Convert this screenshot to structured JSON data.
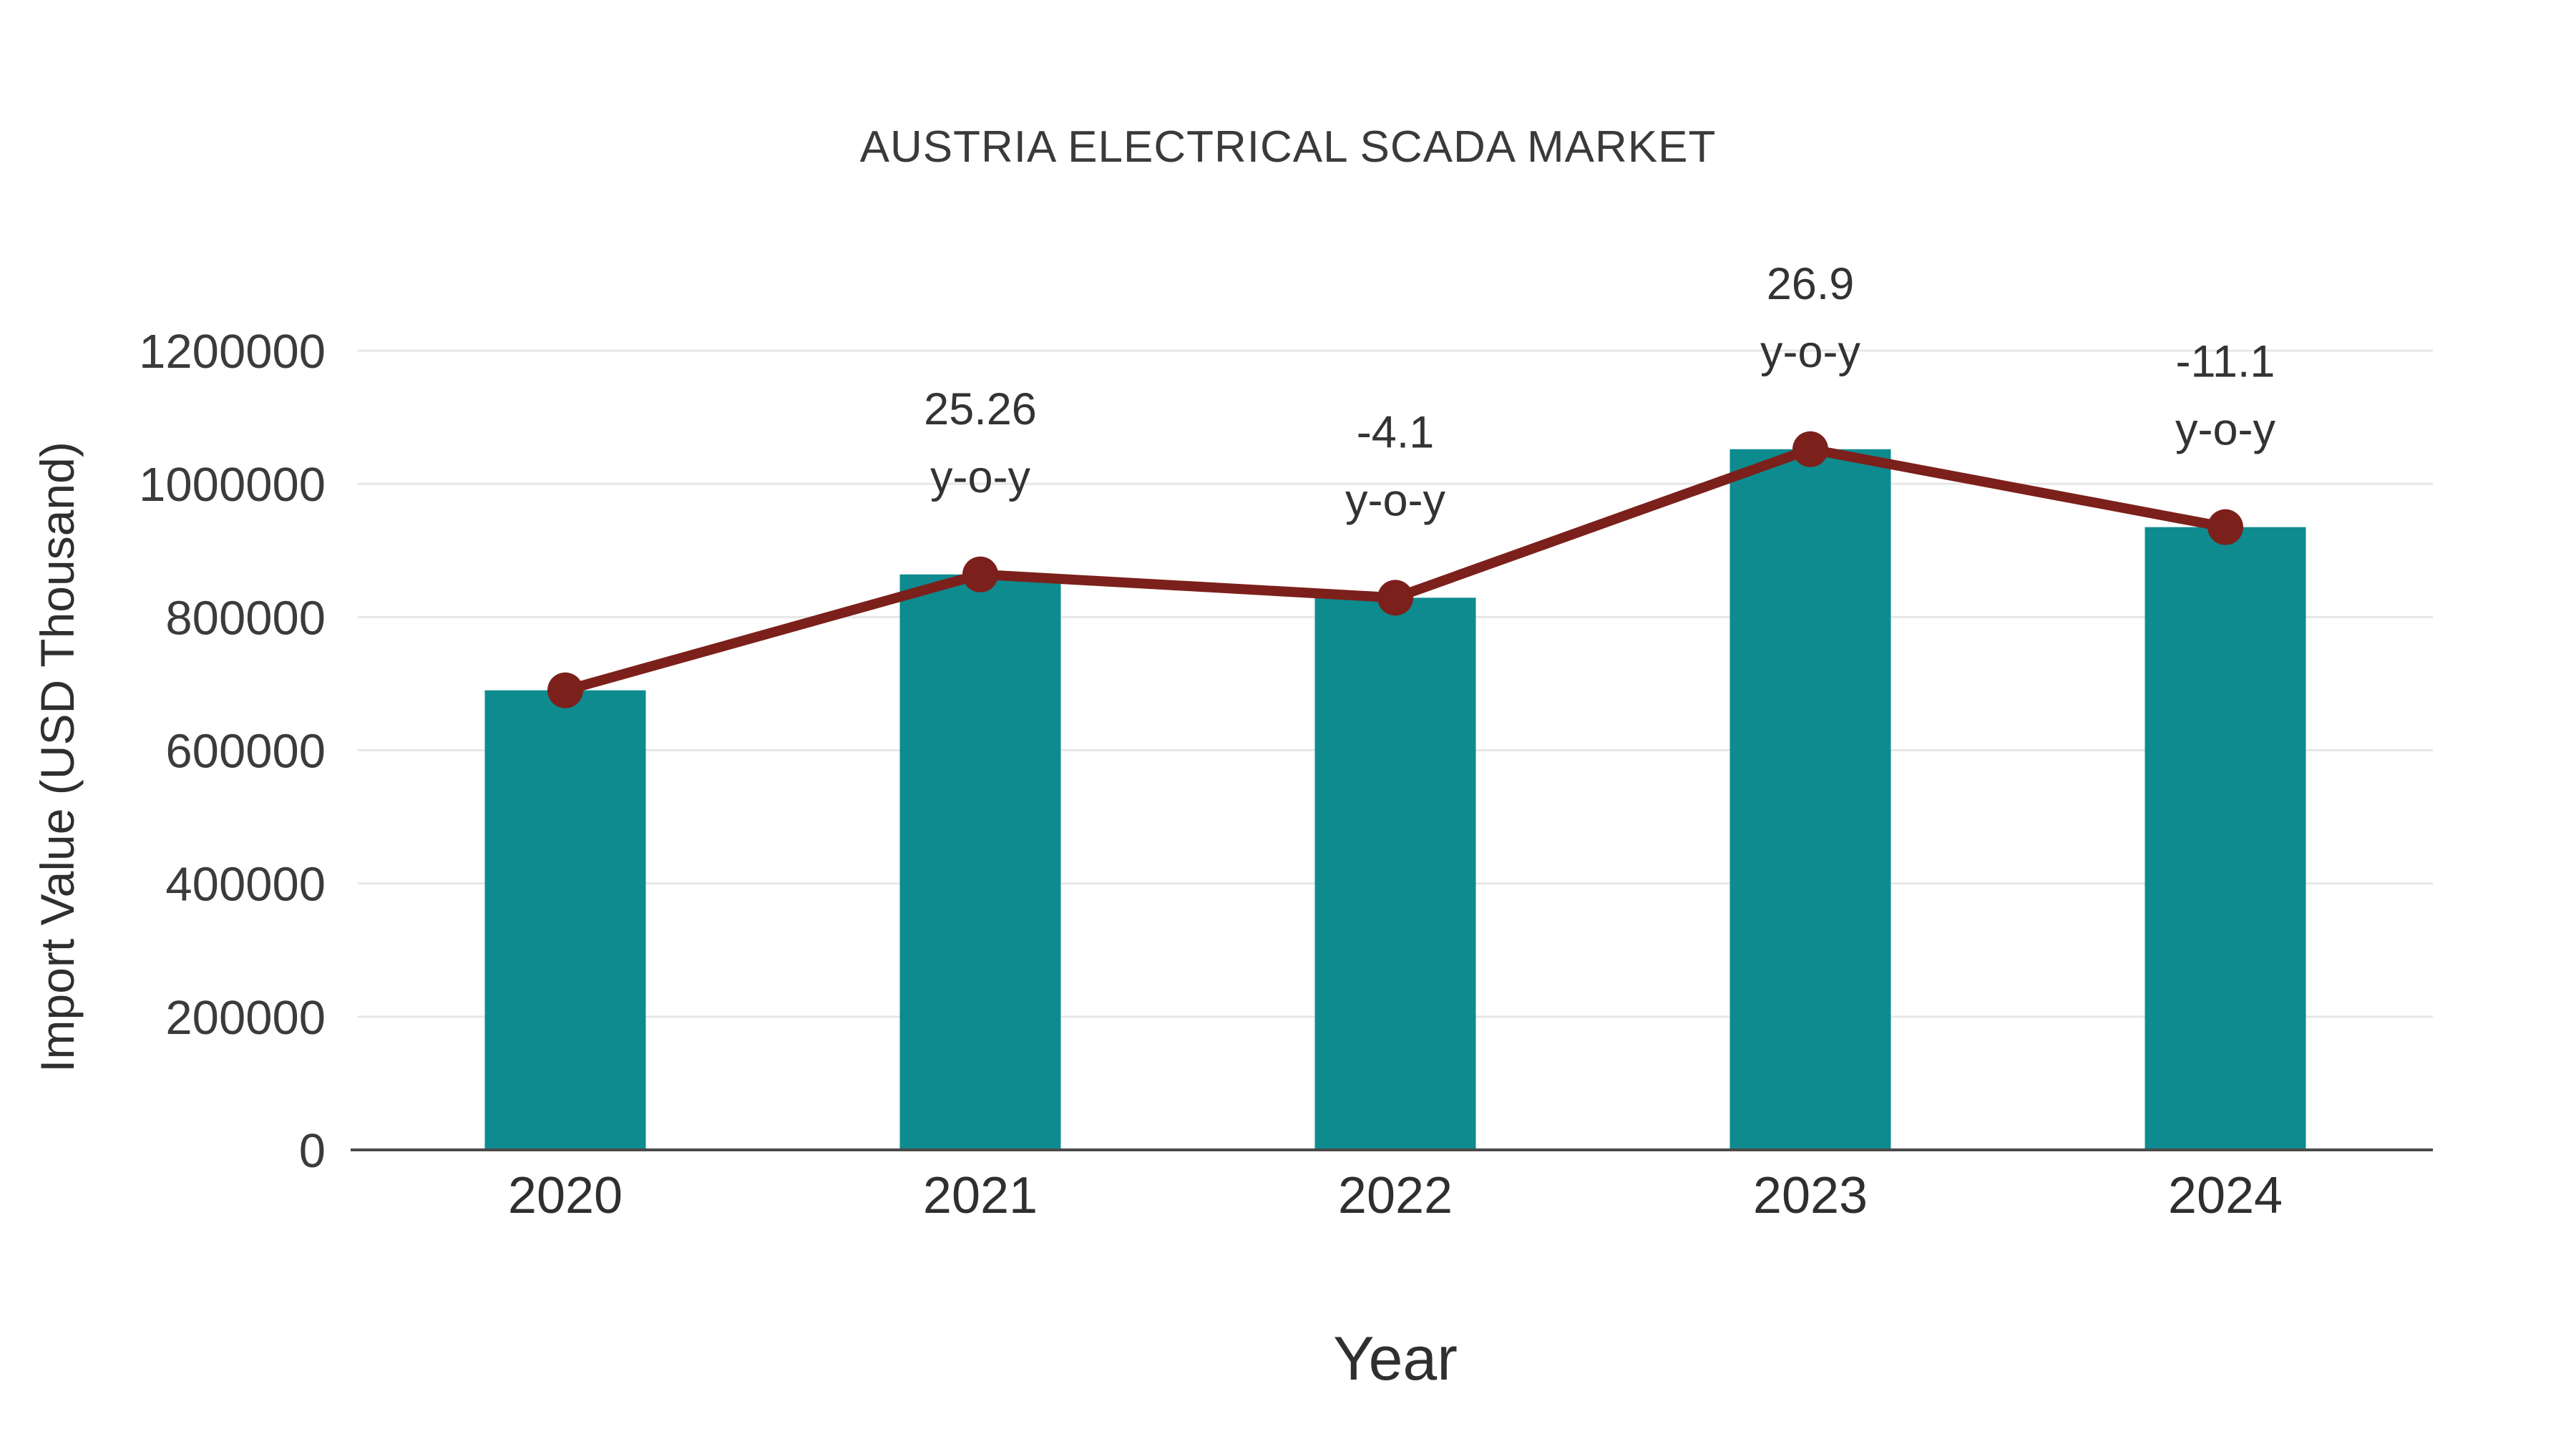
{
  "chart_data": {
    "type": "bar",
    "title": "AUSTRIA ELECTRICAL SCADA MARKET",
    "xlabel": "Year",
    "ylabel": "Import Value (USD Thousand)",
    "categories": [
      "2020",
      "2021",
      "2022",
      "2023",
      "2024"
    ],
    "series": [
      {
        "name": "Import Value (USD Thousand)",
        "type": "bar",
        "color": "#0e8b8f",
        "values": [
          690000,
          864000,
          829000,
          1052000,
          935000
        ]
      },
      {
        "name": "y-o-y trend line",
        "type": "line",
        "color": "#7c201b",
        "values": [
          690000,
          864000,
          829000,
          1052000,
          935000
        ]
      }
    ],
    "annotations": [
      {
        "category": "2021",
        "line1": "25.26",
        "line2": "y-o-y"
      },
      {
        "category": "2022",
        "line1": "-4.1",
        "line2": "y-o-y"
      },
      {
        "category": "2023",
        "line1": "26.9",
        "line2": "y-o-y"
      },
      {
        "category": "2024",
        "line1": "-11.1",
        "line2": "y-o-y"
      }
    ],
    "ylim": [
      0,
      1200000
    ],
    "ytick_step": 200000,
    "grid": true,
    "legend": "none",
    "colors": {
      "background": "#ffffff",
      "grid": "#e7e7e7",
      "axis": "#4a4a4a",
      "text": "#3b3b3b"
    }
  }
}
